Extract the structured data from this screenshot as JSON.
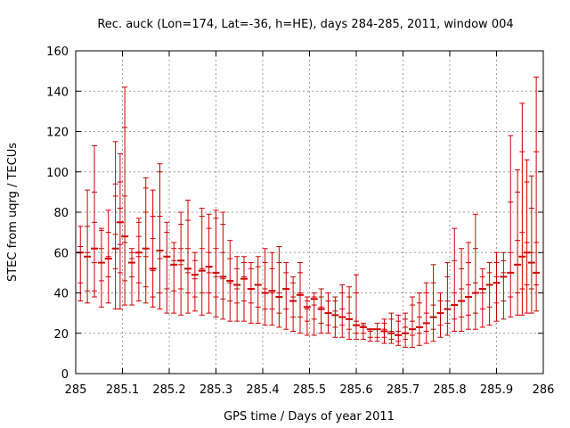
{
  "chart_data": {
    "type": "errorbar",
    "title": "Rec. auck (Lon=174, Lat=-36, h=HE), days 284-285, 2011, window 004",
    "xlabel": "GPS time / Days of year 2011",
    "ylabel": "STEC from uqrg / TECUs",
    "xlim": [
      285,
      286
    ],
    "ylim": [
      0,
      160
    ],
    "xticks": [
      "285",
      "285.1",
      "285.2",
      "285.3",
      "285.4",
      "285.5",
      "285.6",
      "285.7",
      "285.8",
      "285.9",
      "286"
    ],
    "yticks": [
      "0",
      "20",
      "40",
      "60",
      "80",
      "100",
      "120",
      "140",
      "160"
    ],
    "grid": true,
    "series": [
      {
        "color": "#cc0000",
        "x": [
          285.01,
          285.025,
          285.04,
          285.055,
          285.07,
          285.085,
          285.095,
          285.105,
          285.12,
          285.135,
          285.15,
          285.165,
          285.18,
          285.195,
          285.21,
          285.225,
          285.24,
          285.255,
          285.27,
          285.285,
          285.3,
          285.315,
          285.33,
          285.345,
          285.36,
          285.375,
          285.39,
          285.405,
          285.42,
          285.435,
          285.45,
          285.465,
          285.48,
          285.495,
          285.51,
          285.525,
          285.54,
          285.555,
          285.57,
          285.585,
          285.6,
          285.615,
          285.63,
          285.645,
          285.66,
          285.675,
          285.69,
          285.705,
          285.72,
          285.735,
          285.75,
          285.765,
          285.78,
          285.795,
          285.81,
          285.825,
          285.84,
          285.855,
          285.87,
          285.885,
          285.9,
          285.915,
          285.93,
          285.945,
          285.955,
          285.965,
          285.975,
          285.985
        ],
        "ymin": [
          36,
          35,
          38,
          33,
          35,
          32,
          32,
          34,
          34,
          36,
          35,
          33,
          32,
          30,
          30,
          29,
          30,
          31,
          29,
          30,
          28,
          27,
          26,
          26,
          26,
          25,
          25,
          24,
          24,
          23,
          22,
          21,
          20,
          19,
          19,
          20,
          20,
          18,
          18,
          17,
          17,
          17,
          16,
          16,
          15,
          15,
          14,
          13,
          13,
          14,
          15,
          16,
          18,
          19,
          21,
          21,
          22,
          22,
          23,
          24,
          26,
          27,
          28,
          29,
          29,
          30,
          30,
          31
        ],
        "y": [
          60,
          58,
          62,
          55,
          57,
          62,
          75,
          68,
          55,
          60,
          62,
          52,
          61,
          58,
          54,
          56,
          52,
          49,
          51,
          53,
          50,
          48,
          46,
          44,
          47,
          42,
          44,
          40,
          41,
          38,
          42,
          36,
          39,
          33,
          37,
          32,
          30,
          29,
          28,
          27,
          24,
          23,
          22,
          22,
          21,
          20,
          19,
          20,
          22,
          23,
          25,
          28,
          30,
          32,
          34,
          36,
          38,
          40,
          42,
          44,
          45,
          48,
          50,
          54,
          58,
          60,
          55,
          50
        ],
        "ymax": [
          73,
          91,
          113,
          72,
          81,
          115,
          109,
          142,
          62,
          77,
          97,
          91,
          104,
          75,
          65,
          80,
          86,
          60,
          82,
          79,
          81,
          80,
          66,
          58,
          58,
          55,
          58,
          62,
          60,
          63,
          55,
          48,
          55,
          38,
          40,
          42,
          40,
          38,
          44,
          43,
          49,
          25,
          22,
          25,
          27,
          30,
          29,
          30,
          38,
          40,
          45,
          54,
          40,
          55,
          72,
          62,
          65,
          79,
          52,
          55,
          60,
          60,
          118,
          101,
          134,
          106,
          98,
          147
        ],
        "ticks": [
          [
            45,
            63
          ],
          [
            41,
            60,
            73
          ],
          [
            41,
            55,
            75,
            90
          ],
          [
            46,
            62,
            71
          ],
          [
            48,
            58,
            70
          ],
          [
            52,
            69,
            88,
            94
          ],
          [
            50,
            64,
            82,
            95
          ],
          [
            46,
            65,
            88,
            122
          ],
          [
            48,
            57,
            60
          ],
          [
            45,
            58,
            68,
            75
          ],
          [
            43,
            58,
            80,
            92
          ],
          [
            38,
            51,
            67,
            78
          ],
          [
            40,
            57,
            78,
            100
          ],
          [
            42,
            58,
            70
          ],
          [
            41,
            56,
            62
          ],
          [
            42,
            54,
            62,
            74
          ],
          [
            40,
            50,
            62,
            76
          ],
          [
            38,
            47,
            56
          ],
          [
            40,
            52,
            62,
            78
          ],
          [
            40,
            50,
            60,
            72
          ],
          [
            38,
            48,
            62,
            77
          ],
          [
            37,
            47,
            60,
            74
          ],
          [
            36,
            45,
            57
          ],
          [
            35,
            42,
            52
          ],
          [
            36,
            48,
            55
          ],
          [
            35,
            42,
            52
          ],
          [
            33,
            44,
            53
          ],
          [
            32,
            42,
            55
          ],
          [
            32,
            40,
            52
          ],
          [
            30,
            40,
            55
          ],
          [
            32,
            42,
            50
          ],
          [
            28,
            38,
            45
          ],
          [
            28,
            40,
            50
          ],
          [
            26,
            32,
            36
          ],
          [
            27,
            34,
            38
          ],
          [
            25,
            33,
            38
          ],
          [
            24,
            30,
            36
          ],
          [
            23,
            31,
            36
          ],
          [
            24,
            32,
            40
          ],
          [
            22,
            30,
            38
          ],
          [
            20,
            26,
            40
          ],
          [
            20,
            24
          ],
          [
            18,
            21
          ],
          [
            18,
            22
          ],
          [
            18,
            22,
            25
          ],
          [
            17,
            21,
            27
          ],
          [
            16,
            21,
            26
          ],
          [
            17,
            23,
            27
          ],
          [
            19,
            26,
            34
          ],
          [
            20,
            28,
            35
          ],
          [
            21,
            30,
            40
          ],
          [
            22,
            34,
            45
          ],
          [
            24,
            30,
            36
          ],
          [
            25,
            36,
            48
          ],
          [
            27,
            40,
            56
          ],
          [
            28,
            42,
            52
          ],
          [
            29,
            44,
            55
          ],
          [
            30,
            45,
            62
          ],
          [
            32,
            40,
            48
          ],
          [
            33,
            44,
            50
          ],
          [
            35,
            48,
            55
          ],
          [
            36,
            50,
            56
          ],
          [
            38,
            60,
            85
          ],
          [
            40,
            66,
            90
          ],
          [
            42,
            70,
            110
          ],
          [
            44,
            65,
            95
          ],
          [
            42,
            60,
            82
          ],
          [
            44,
            65,
            110
          ]
        ]
      }
    ]
  }
}
